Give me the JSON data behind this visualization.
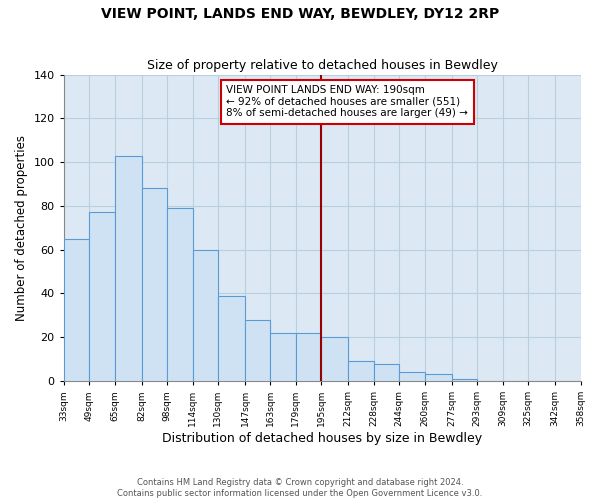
{
  "title": "VIEW POINT, LANDS END WAY, BEWDLEY, DY12 2RP",
  "subtitle": "Size of property relative to detached houses in Bewdley",
  "xlabel": "Distribution of detached houses by size in Bewdley",
  "ylabel": "Number of detached properties",
  "footer_line1": "Contains HM Land Registry data © Crown copyright and database right 2024.",
  "footer_line2": "Contains public sector information licensed under the Open Government Licence v3.0.",
  "bin_labels": [
    "33sqm",
    "49sqm",
    "65sqm",
    "82sqm",
    "98sqm",
    "114sqm",
    "130sqm",
    "147sqm",
    "163sqm",
    "179sqm",
    "195sqm",
    "212sqm",
    "228sqm",
    "244sqm",
    "260sqm",
    "277sqm",
    "293sqm",
    "309sqm",
    "325sqm",
    "342sqm",
    "358sqm"
  ],
  "bar_values": [
    65,
    77,
    103,
    88,
    79,
    60,
    39,
    28,
    22,
    22,
    20,
    9,
    8,
    4,
    3,
    1,
    0,
    0,
    0,
    0
  ],
  "bar_color": "#cfe2f3",
  "bar_edge_color": "#5b9bd5",
  "vline_color": "#990000",
  "annotation_title": "VIEW POINT LANDS END WAY: 190sqm",
  "annotation_line1": "← 92% of detached houses are smaller (551)",
  "annotation_line2": "8% of semi-detached houses are larger (49) →",
  "annotation_box_color": "white",
  "annotation_border_color": "#cc0000",
  "bg_color": "#dce9f5",
  "grid_color": "#b8cfe0",
  "ylim": [
    0,
    140
  ],
  "yticks": [
    0,
    20,
    40,
    60,
    80,
    100,
    120,
    140
  ],
  "bin_edges": [
    33,
    49,
    65,
    82,
    98,
    114,
    130,
    147,
    163,
    179,
    195,
    212,
    228,
    244,
    260,
    277,
    293,
    309,
    325,
    342,
    358
  ],
  "vline_bin_index": 9
}
